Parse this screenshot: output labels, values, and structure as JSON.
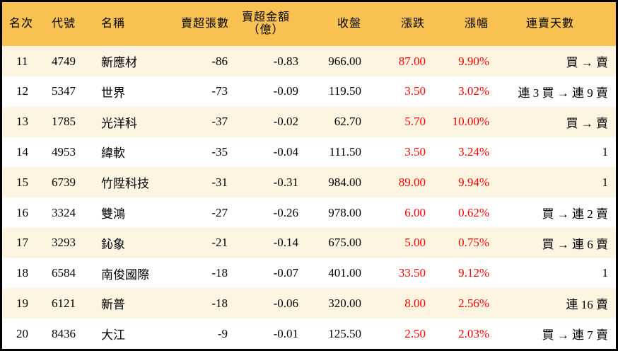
{
  "colors": {
    "header_bg": "#f8c152",
    "odd_row_bg": "#fdf5e2",
    "up": "#ff0000"
  },
  "headers": [
    "名次",
    "代號",
    "名稱",
    "賣超張數",
    "賣超金額\n（億）",
    "收盤",
    "漲跌",
    "漲幅",
    "連賣天數"
  ],
  "rows": [
    [
      "11",
      "4749",
      "新應材",
      "-86",
      "-0.83",
      "966.00",
      "87.00",
      "9.90%",
      "買 → 賣"
    ],
    [
      "12",
      "5347",
      "世界",
      "-73",
      "-0.09",
      "119.50",
      "3.50",
      "3.02%",
      "連 3 買 → 連 9 賣"
    ],
    [
      "13",
      "1785",
      "光洋科",
      "-37",
      "-0.02",
      "62.70",
      "5.70",
      "10.00%",
      "買 → 賣"
    ],
    [
      "14",
      "4953",
      "緯軟",
      "-35",
      "-0.04",
      "111.50",
      "3.50",
      "3.24%",
      "1"
    ],
    [
      "15",
      "6739",
      "竹陞科技",
      "-31",
      "-0.31",
      "984.00",
      "89.00",
      "9.94%",
      "1"
    ],
    [
      "16",
      "3324",
      "雙鴻",
      "-27",
      "-0.26",
      "978.00",
      "6.00",
      "0.62%",
      "買 → 連 2 賣"
    ],
    [
      "17",
      "3293",
      "鈊象",
      "-21",
      "-0.14",
      "675.00",
      "5.00",
      "0.75%",
      "買 → 連 6 賣"
    ],
    [
      "18",
      "6584",
      "南俊國際",
      "-18",
      "-0.07",
      "401.00",
      "33.50",
      "9.12%",
      "1"
    ],
    [
      "19",
      "6121",
      "新普",
      "-18",
      "-0.06",
      "320.00",
      "8.00",
      "2.56%",
      "連 16 賣"
    ],
    [
      "20",
      "8436",
      "大江",
      "-9",
      "-0.01",
      "125.50",
      "2.50",
      "2.03%",
      "買 → 連 7 賣"
    ]
  ]
}
